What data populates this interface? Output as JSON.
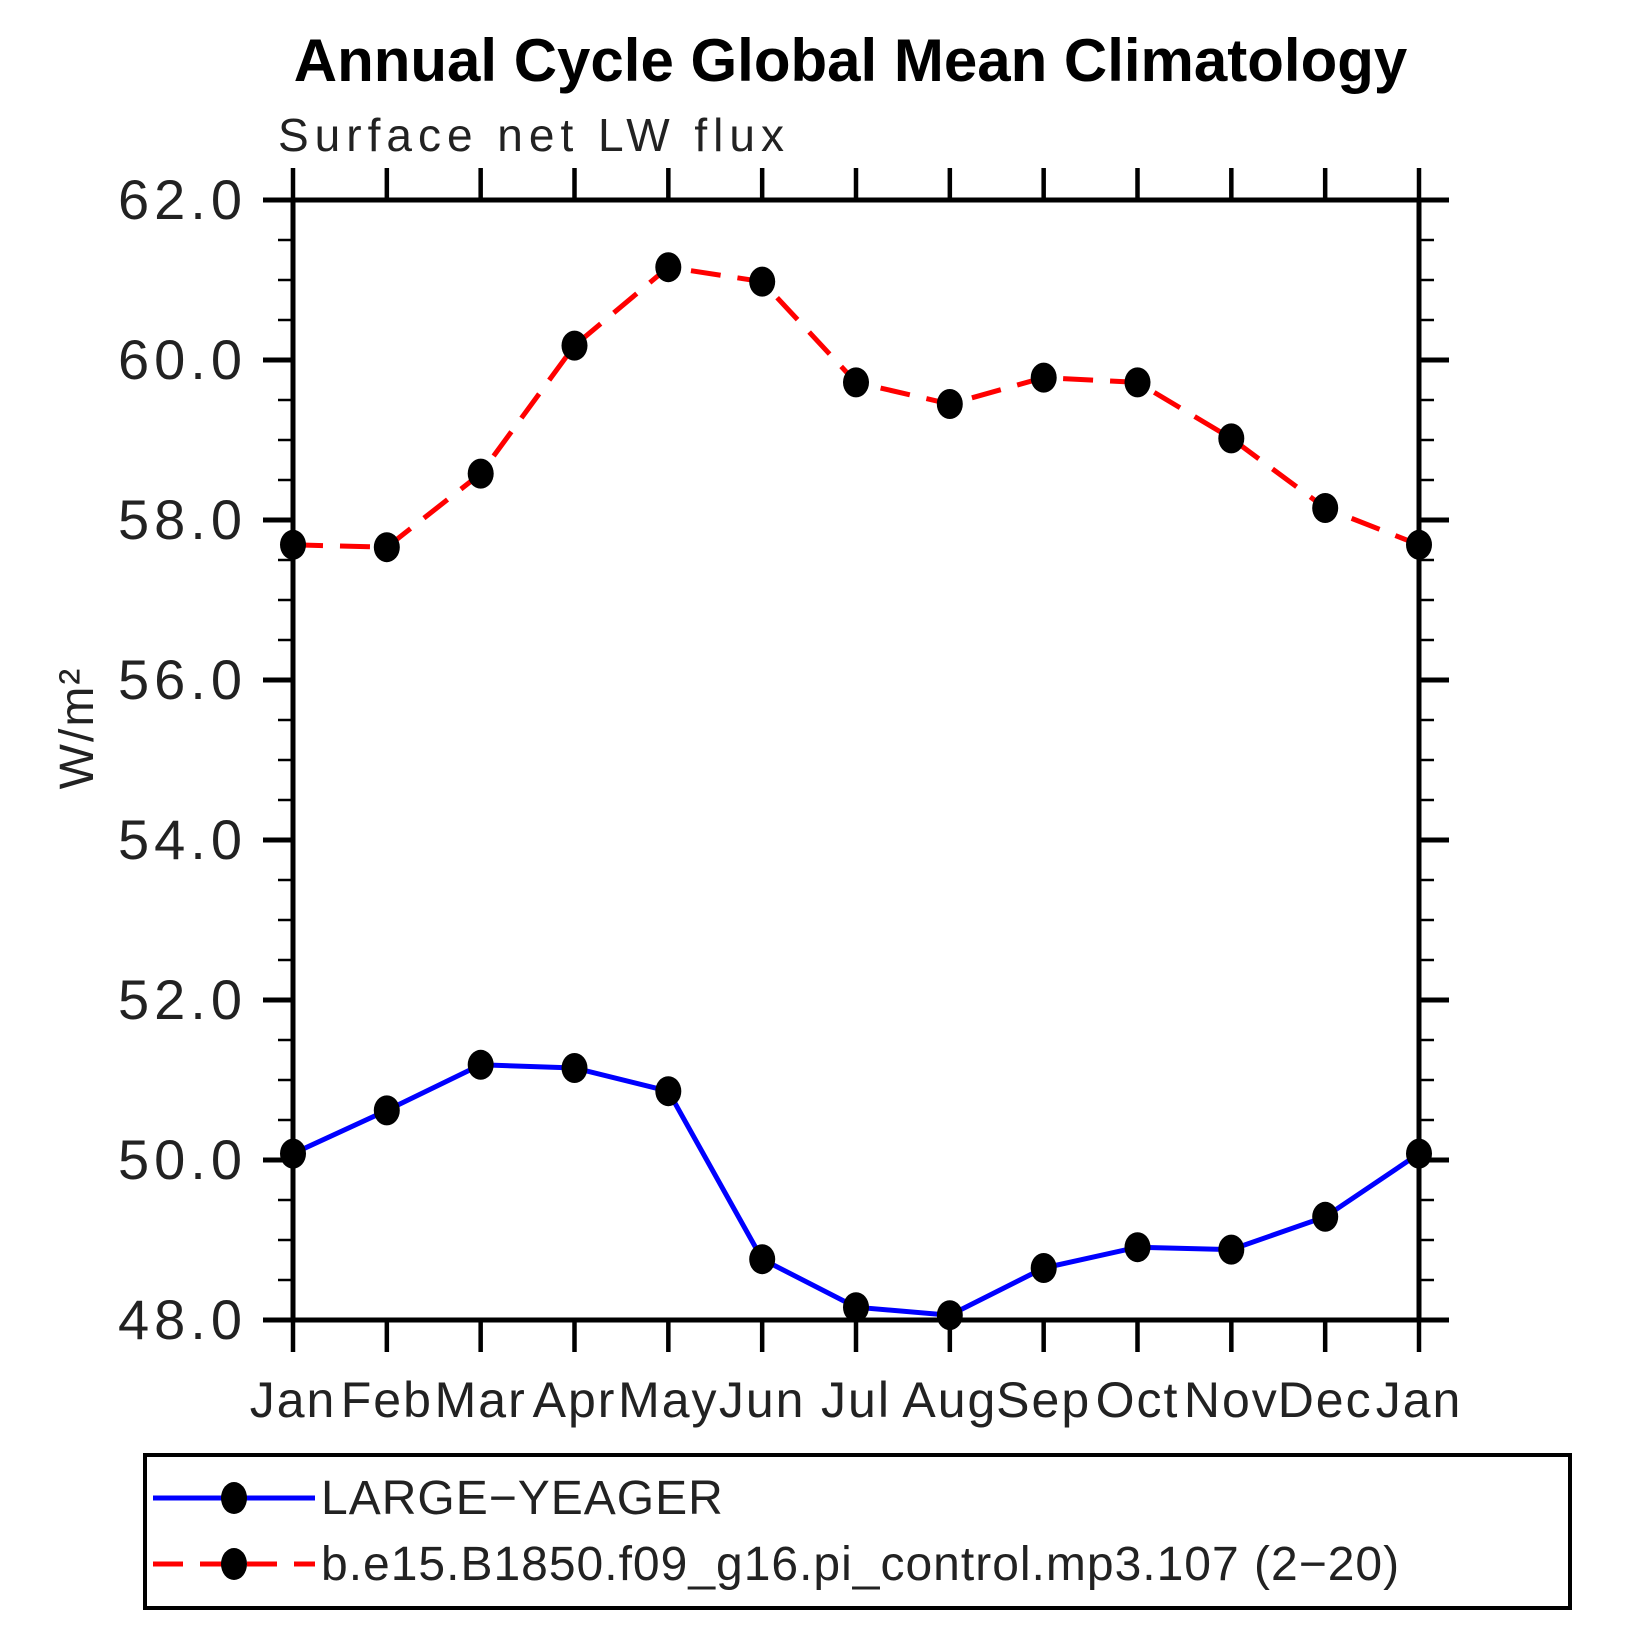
{
  "header": {
    "title": "Annual Cycle Global Mean Climatology",
    "subtitle": "Surface net LW flux"
  },
  "chart_data": {
    "type": "line",
    "title": "Annual Cycle Global Mean Climatology",
    "subtitle": "Surface net LW flux",
    "ylabel": "W/m²",
    "xlabel": "",
    "categories": [
      "Jan",
      "Feb",
      "Mar",
      "Apr",
      "May",
      "Jun",
      "Jul",
      "Aug",
      "Sep",
      "Oct",
      "Nov",
      "Dec",
      "Jan"
    ],
    "ylim": [
      48.0,
      62.0
    ],
    "ytick_major_step": 2.0,
    "ytick_minor_step": 0.5,
    "ytick_labels": [
      "48.0",
      "50.0",
      "52.0",
      "54.0",
      "56.0",
      "58.0",
      "60.0",
      "62.0"
    ],
    "grid": false,
    "legend_position": "bottom box",
    "series": [
      {
        "name": "LARGE−YEAGER",
        "color": "#0000ff",
        "line_style": "solid",
        "marker": "filled-circle",
        "marker_color": "#000000",
        "values": [
          50.08,
          50.62,
          51.19,
          51.15,
          50.86,
          48.76,
          48.16,
          48.06,
          48.65,
          48.91,
          48.88,
          49.29,
          50.08
        ]
      },
      {
        "name": "b.e15.B1850.f09_g16.pi_control.mp3.107 (2−20)",
        "color": "#ff0000",
        "line_style": "dashed",
        "marker": "filled-circle",
        "marker_color": "#000000",
        "values": [
          57.69,
          57.66,
          58.58,
          60.18,
          61.16,
          60.98,
          59.72,
          59.45,
          59.78,
          59.72,
          59.02,
          58.15,
          57.69
        ]
      }
    ]
  }
}
